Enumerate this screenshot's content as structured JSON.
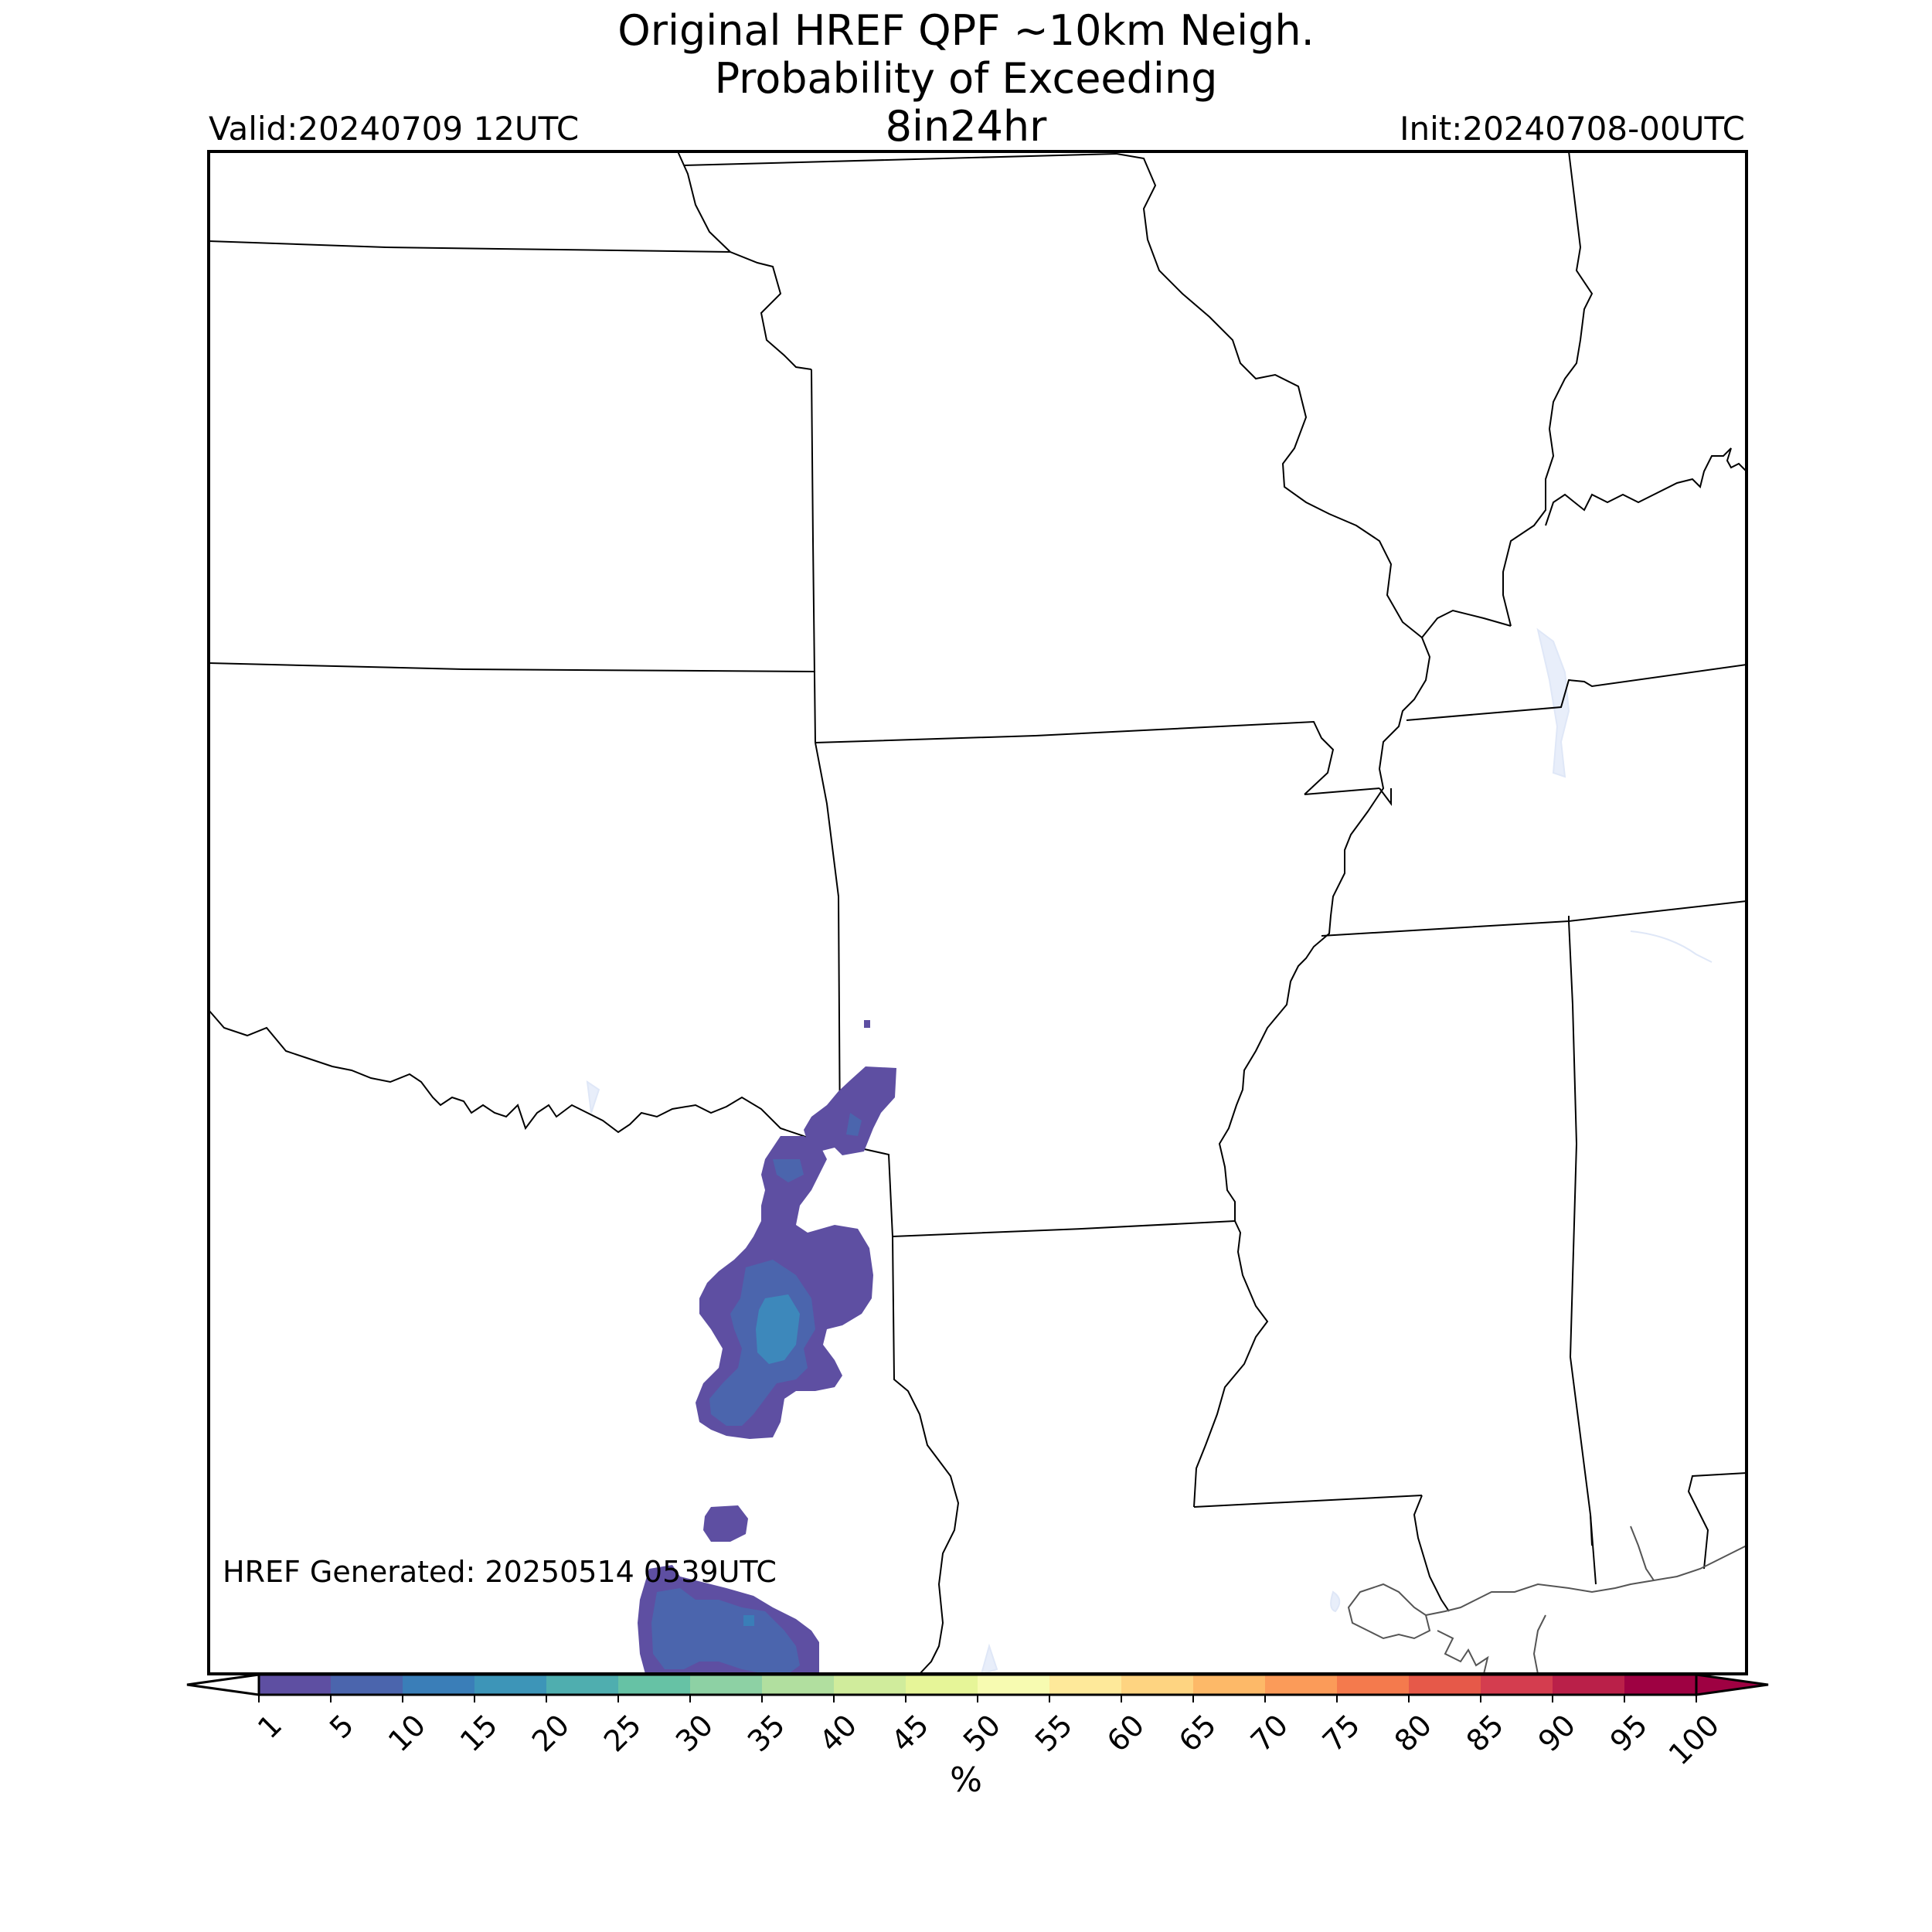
{
  "header": {
    "title_line1": "Original HREF QPF ~10km Neigh.",
    "title_line2": "Probability of Exceeding",
    "title_line3": "8in24hr",
    "valid": "Valid:20240709 12UTC",
    "init": "Init:20240708-00UTC"
  },
  "footer": {
    "generated": "HREF Generated: 20250514 0539UTC"
  },
  "colorbar": {
    "unit": "%",
    "ticks": [
      "1",
      "5",
      "10",
      "15",
      "20",
      "25",
      "30",
      "35",
      "40",
      "45",
      "50",
      "55",
      "60",
      "65",
      "70",
      "75",
      "80",
      "85",
      "90",
      "95",
      "100"
    ],
    "colors": [
      "#5e4fa2",
      "#4b65ad",
      "#3a7eb8",
      "#3d95b8",
      "#4faeaf",
      "#66c2a5",
      "#8dd1a4",
      "#b1df9f",
      "#d0ec9c",
      "#e6f598",
      "#f7fbb1",
      "#fee99a",
      "#fed481",
      "#fdb968",
      "#fb9b59",
      "#f47a4d",
      "#e65949",
      "#d43d4f",
      "#ba2049",
      "#9e0142"
    ],
    "under_color": "#ffffff",
    "over_color": "#9e0142"
  },
  "map": {
    "region": "south-central United States",
    "low_prob_color": "#5e4fa2",
    "mid_prob_color": "#4b65ad",
    "high_prob_color": "#3a7eb8",
    "water_color": "#e8eefa"
  }
}
